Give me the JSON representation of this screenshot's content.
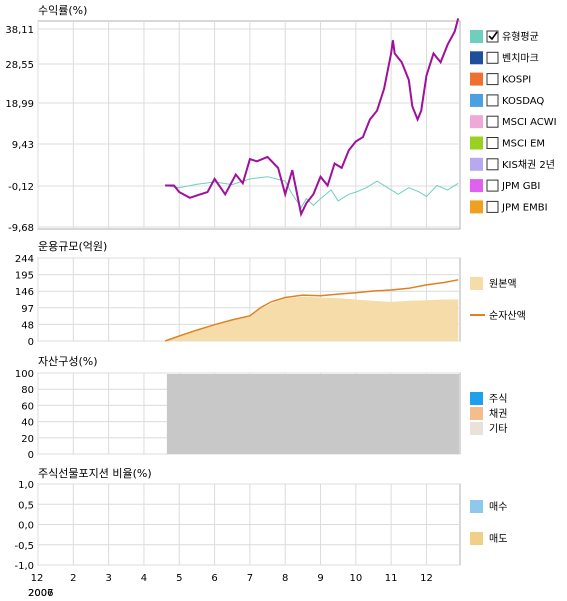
{
  "chart_data": [
    {
      "type": "line",
      "title": "수익률(%)",
      "y_ticks": [
        "38,11",
        "28,55",
        "18,99",
        "9,43",
        "-0,12",
        "-9,68"
      ],
      "ylim": [
        -9.68,
        38.11
      ],
      "legend": [
        {
          "label": "유형평균",
          "color": "#6fcfbf",
          "checked": true
        },
        {
          "label": "벤치마크",
          "color": "#1f4e9c",
          "checked": false
        },
        {
          "label": "KOSPI",
          "color": "#f07030",
          "checked": false
        },
        {
          "label": "KOSDAQ",
          "color": "#4aa0e0",
          "checked": false
        },
        {
          "label": "MSCI ACWI",
          "color": "#f0a8d8",
          "checked": false
        },
        {
          "label": "MSCI EM",
          "color": "#9ad020",
          "checked": false
        },
        {
          "label": "KIS채권 2년",
          "color": "#b8a8f0",
          "checked": false
        },
        {
          "label": "JPM GBI",
          "color": "#e060f0",
          "checked": false
        },
        {
          "label": "JPM EMBI",
          "color": "#f0a020",
          "checked": false
        }
      ],
      "series": [
        {
          "color": "#a0109a",
          "x": [
            4.6,
            4.85,
            5.0,
            5.3,
            5.6,
            5.8,
            6.0,
            6.3,
            6.6,
            6.8,
            7.0,
            7.2,
            7.5,
            7.8,
            8.0,
            8.2,
            8.45,
            8.6,
            8.8,
            9.0,
            9.2,
            9.4,
            9.6,
            9.8,
            10.0,
            10.2,
            10.4,
            10.6,
            10.8,
            11.0,
            11.05,
            11.1,
            11.3,
            11.5,
            11.6,
            11.75,
            11.85,
            12.0,
            12.2,
            12.4,
            12.6,
            12.8,
            12.9
          ],
          "y": [
            0.0,
            0.0,
            -1.5,
            -2.8,
            -2.0,
            -1.5,
            1.5,
            -2.0,
            2.5,
            0.5,
            6.0,
            5.5,
            6.5,
            4.0,
            -2.0,
            3.5,
            -6.5,
            -4.0,
            -2.0,
            2.0,
            0.0,
            5.0,
            4.0,
            8.0,
            10.0,
            11.0,
            15.0,
            17.0,
            22.0,
            30.0,
            33.0,
            30.0,
            28.0,
            24.0,
            18.0,
            15.0,
            17.0,
            25.0,
            30.0,
            28.0,
            32.0,
            35.0,
            38.0
          ]
        },
        {
          "color": "#6fcfbf",
          "x": [
            4.6,
            5.0,
            5.5,
            6.0,
            6.5,
            7.0,
            7.5,
            8.0,
            8.2,
            8.45,
            8.6,
            8.8,
            9.0,
            9.3,
            9.5,
            9.8,
            10.0,
            10.3,
            10.6,
            10.9,
            11.2,
            11.5,
            11.8,
            12.0,
            12.3,
            12.6,
            12.9
          ],
          "y": [
            0.0,
            -0.5,
            0.3,
            0.8,
            0.2,
            1.5,
            2.0,
            1.0,
            -2.0,
            -5.0,
            -3.0,
            -4.5,
            -3.0,
            -1.0,
            -3.5,
            -2.0,
            -1.5,
            -0.5,
            1.0,
            -0.5,
            -2.0,
            -0.5,
            -1.5,
            -2.5,
            0.0,
            -1.0,
            0.5
          ]
        }
      ]
    },
    {
      "type": "area",
      "title": "운용규모(억원)",
      "y_ticks": [
        "244",
        "195",
        "146",
        "97",
        "48",
        "0"
      ],
      "ylim": [
        0,
        244
      ],
      "legend": [
        {
          "label": "원본액",
          "color": "#f5dca8"
        },
        {
          "label": "순자산액",
          "color": "#e08020"
        }
      ],
      "x": [
        4.6,
        5.0,
        5.5,
        6.0,
        6.5,
        7.0,
        7.3,
        7.6,
        8.0,
        8.5,
        9.0,
        9.5,
        10.0,
        10.5,
        11.0,
        11.5,
        12.0,
        12.5,
        12.9
      ],
      "series": [
        {
          "name": "원본액",
          "values": [
            0,
            15,
            30,
            45,
            60,
            72,
            95,
            110,
            125,
            130,
            128,
            126,
            122,
            118,
            115,
            118,
            120,
            122,
            122
          ]
        },
        {
          "name": "순자산액",
          "values": [
            0,
            15,
            32,
            48,
            62,
            74,
            98,
            115,
            128,
            135,
            133,
            138,
            142,
            147,
            150,
            155,
            165,
            172,
            180
          ]
        }
      ]
    },
    {
      "type": "area",
      "title": "자산구성(%)",
      "y_ticks": [
        "100",
        "80",
        "60",
        "40",
        "20",
        "0"
      ],
      "ylim": [
        0,
        100
      ],
      "legend": [
        {
          "label": "주식",
          "color": "#1ea0ef"
        },
        {
          "label": "채권",
          "color": "#f5bd8c"
        },
        {
          "label": "기타",
          "color": "#e8e2da"
        }
      ],
      "fill_color": "#c8c8c8",
      "x_start": 4.65
    },
    {
      "type": "area",
      "title": "주식선물포지션 비율(%)",
      "y_ticks": [
        "1,0",
        "0,5",
        "0,0",
        "-0,5",
        "-1,0"
      ],
      "ylim": [
        -1.0,
        1.0
      ],
      "legend": [
        {
          "label": "매수",
          "color": "#8ec8ec"
        },
        {
          "label": "매도",
          "color": "#f0d088"
        }
      ]
    }
  ],
  "x_axis": {
    "ticks": [
      {
        "label": "12",
        "x": 1
      },
      {
        "label": "2",
        "x": 2
      },
      {
        "label": "3",
        "x": 3
      },
      {
        "label": "4",
        "x": 4
      },
      {
        "label": "5",
        "x": 5
      },
      {
        "label": "6",
        "x": 6
      },
      {
        "label": "7",
        "x": 7
      },
      {
        "label": "8",
        "x": 8
      },
      {
        "label": "9",
        "x": 9
      },
      {
        "label": "10",
        "x": 10
      },
      {
        "label": "11",
        "x": 11
      },
      {
        "label": "12",
        "x": 12
      }
    ],
    "year_labels": [
      "2006",
      "2007"
    ]
  }
}
